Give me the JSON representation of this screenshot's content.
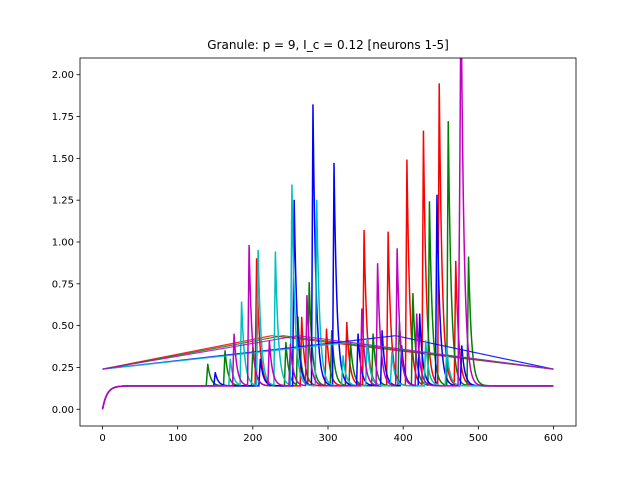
{
  "chart_data": {
    "type": "line",
    "title": "Granule: p = 9, I_c = 0.12 [neurons 1-5]",
    "xlabel": "",
    "ylabel": "",
    "xlim": [
      -30,
      630
    ],
    "ylim": [
      -0.1,
      2.1
    ],
    "xticks": [
      0,
      100,
      200,
      300,
      400,
      500,
      600
    ],
    "yticks": [
      0.0,
      0.25,
      0.5,
      0.75,
      1.0,
      1.25,
      1.5,
      1.75,
      2.0
    ],
    "xtick_labels": [
      "0",
      "100",
      "200",
      "300",
      "400",
      "500",
      "600"
    ],
    "ytick_labels": [
      "0.00",
      "0.25",
      "0.50",
      "0.75",
      "1.00",
      "1.25",
      "1.50",
      "1.75",
      "2.00"
    ],
    "grid": false,
    "legend": false,
    "baseline": 0.14,
    "series": [
      {
        "color": "#ff0000",
        "spikes": [
          [
            205,
            0.9
          ],
          [
            265,
            0.55
          ],
          [
            298,
            0.48
          ],
          [
            325,
            0.52
          ],
          [
            348,
            1.07
          ],
          [
            380,
            1.06
          ],
          [
            405,
            1.49
          ],
          [
            427,
            1.66
          ],
          [
            448,
            1.94
          ],
          [
            470,
            0.88
          ]
        ],
        "ramps": [
          [
            0,
            0.24,
            225,
            0.44
          ],
          [
            225,
            0.44,
            600,
            0.24
          ]
        ]
      },
      {
        "color": "#008000",
        "spikes": [
          [
            140,
            0.27
          ],
          [
            163,
            0.35
          ],
          [
            200,
            0.37
          ],
          [
            244,
            0.4
          ],
          [
            260,
            0.55
          ],
          [
            275,
            0.75
          ],
          [
            305,
            0.47
          ],
          [
            330,
            0.4
          ],
          [
            360,
            0.45
          ],
          [
            395,
            0.52
          ],
          [
            413,
            0.69
          ],
          [
            435,
            1.24
          ],
          [
            460,
            1.72
          ],
          [
            487,
            0.91
          ]
        ],
        "ramps": [
          [
            0,
            0.24,
            240,
            0.44
          ],
          [
            240,
            0.44,
            600,
            0.24
          ]
        ]
      },
      {
        "color": "#0000ff",
        "spikes": [
          [
            150,
            0.22
          ],
          [
            210,
            0.3
          ],
          [
            255,
            1.25
          ],
          [
            280,
            1.82
          ],
          [
            308,
            1.47
          ],
          [
            340,
            0.45
          ],
          [
            372,
            0.47
          ],
          [
            398,
            0.38
          ],
          [
            422,
            0.57
          ],
          [
            445,
            1.28
          ],
          [
            478,
            0.38
          ]
        ],
        "ramps": [
          [
            0,
            0.24,
            390,
            0.44
          ],
          [
            390,
            0.44,
            600,
            0.24
          ]
        ]
      },
      {
        "color": "#00bfbf",
        "spikes": [
          [
            170,
            0.3
          ],
          [
            185,
            0.64
          ],
          [
            207,
            0.95
          ],
          [
            230,
            0.94
          ],
          [
            252,
            1.34
          ],
          [
            285,
            1.25
          ],
          [
            320,
            0.32
          ],
          [
            352,
            0.42
          ],
          [
            385,
            0.34
          ],
          [
            430,
            0.41
          ],
          [
            458,
            0.37
          ]
        ],
        "ramps": [
          [
            0,
            0.24,
            330,
            0.4
          ],
          [
            330,
            0.4,
            600,
            0.24
          ]
        ]
      },
      {
        "color": "#bf00bf",
        "spikes": [
          [
            175,
            0.45
          ],
          [
            195,
            0.98
          ],
          [
            222,
            0.41
          ],
          [
            250,
            0.39
          ],
          [
            272,
            0.68
          ],
          [
            345,
            0.6
          ],
          [
            366,
            0.87
          ],
          [
            392,
            0.96
          ],
          [
            418,
            0.57
          ],
          [
            475,
            1.17
          ],
          [
            477,
            1.94
          ]
        ],
        "ramps": [
          [
            0,
            0.24,
            260,
            0.44
          ],
          [
            260,
            0.44,
            600,
            0.24
          ]
        ]
      }
    ]
  }
}
